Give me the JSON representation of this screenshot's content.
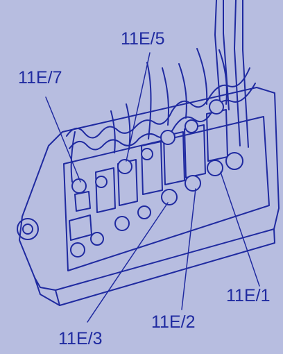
{
  "diagram": {
    "callouts": [
      {
        "id": "11e7",
        "label": "11E/7"
      },
      {
        "id": "11e5",
        "label": "11E/5"
      },
      {
        "id": "11e1",
        "label": "11E/1"
      },
      {
        "id": "11e2",
        "label": "11E/2"
      },
      {
        "id": "11e3",
        "label": "11E/3"
      }
    ],
    "colors": {
      "background": "#b7bde0",
      "ink": "#1f2aa0",
      "fill": "#b7bde0"
    }
  }
}
